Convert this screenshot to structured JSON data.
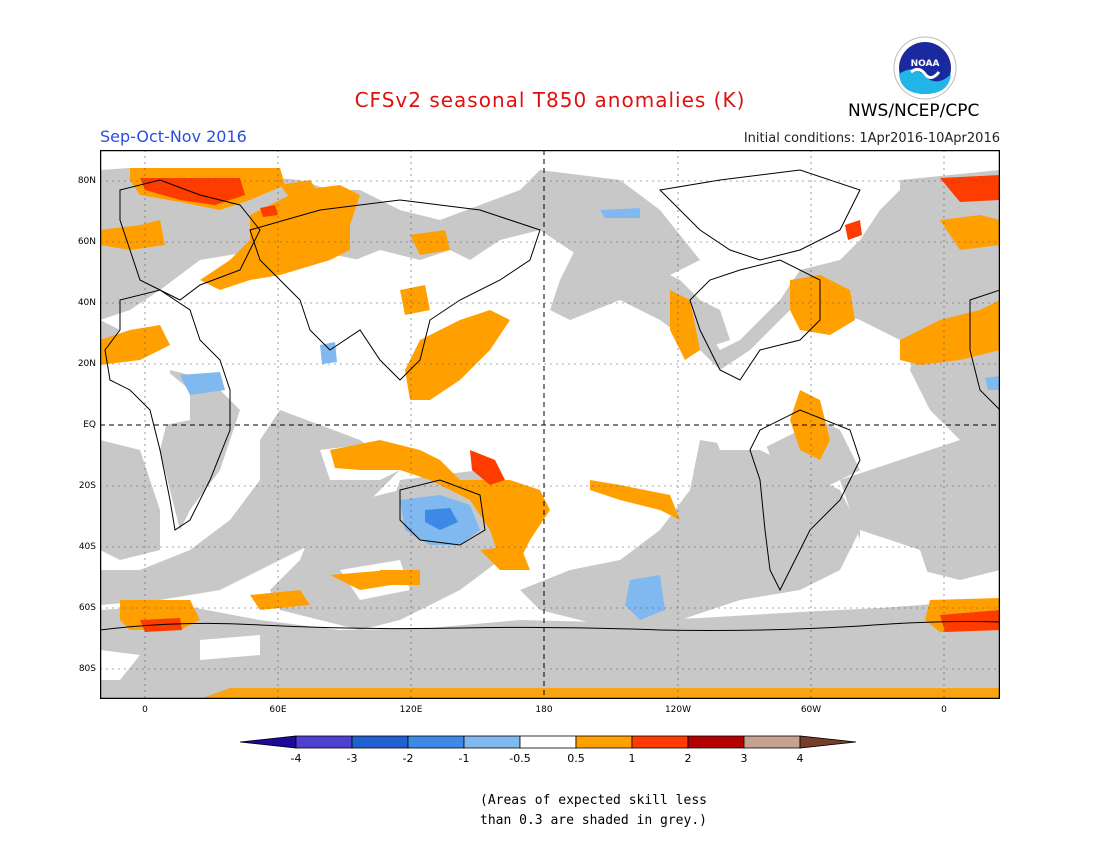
{
  "title": "CFSv2 seasonal T850 anomalies (K)",
  "season": "Sep-Oct-Nov 2016",
  "initial_conditions": "Initial conditions: 1Apr2016-10Apr2016",
  "agency": "NWS/NCEP/CPC",
  "logo_icon": "noaa-logo-icon",
  "logo_text": "NOAA",
  "latitude_labels": [
    "80N",
    "60N",
    "40N",
    "20N",
    "EQ",
    "20S",
    "40S",
    "60S",
    "80S"
  ],
  "longitude_labels": [
    "0",
    "60E",
    "120E",
    "180",
    "120W",
    "60W",
    "0"
  ],
  "colorbar": {
    "ticks": [
      "-4",
      "-3",
      "-2",
      "-1",
      "-0.5",
      "0.5",
      "1",
      "2",
      "3",
      "4"
    ],
    "colors": [
      "#1e0a9a",
      "#5040d0",
      "#2060d0",
      "#3c8ae6",
      "#80b8f0",
      "#ffffff",
      "#ffa000",
      "#ff3c00",
      "#b40000",
      "#c8a090",
      "#783c28"
    ]
  },
  "skill_shading_color": "#c8c8c8",
  "note_lines": [
    "(Areas of expected skill less",
    "than 0.3 are shaded in grey.)"
  ]
}
